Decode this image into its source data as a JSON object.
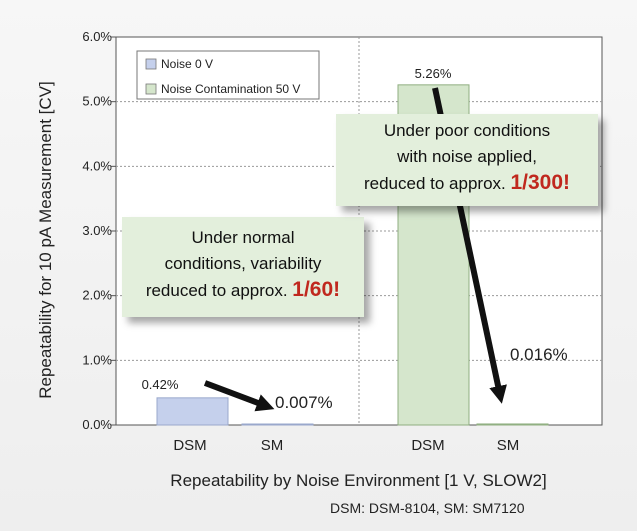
{
  "chart_data": {
    "type": "bar",
    "title": "",
    "ylabel": "Repeatability for 10 pA Measurement [CV]",
    "xlabel": "Repeatability by Noise Environment [1 V, SLOW2]",
    "ylim": [
      0,
      6.0
    ],
    "y_ticks": [
      "0.0%",
      "1.0%",
      "2.0%",
      "3.0%",
      "4.0%",
      "5.0%",
      "6.0%"
    ],
    "y_tick_values": [
      0,
      1,
      2,
      3,
      4,
      5,
      6
    ],
    "grid": true,
    "legend_position": "top-left",
    "groups": [
      {
        "series_name": "Noise 0 V",
        "color": "#c5d0ec",
        "stroke": "#9aa8cc",
        "bars": [
          {
            "category": "DSM",
            "value": 0.42,
            "label": "0.42%"
          },
          {
            "category": "SM",
            "value": 0.007,
            "label": "0.007%"
          }
        ]
      },
      {
        "series_name": "Noise Contamination 50 V",
        "color": "#d5e6cc",
        "stroke": "#8fae80",
        "bars": [
          {
            "category": "DSM",
            "value": 5.26,
            "label": "5.26%"
          },
          {
            "category": "SM",
            "value": 0.016,
            "label": "0.016%"
          }
        ]
      }
    ],
    "legend": [
      {
        "name": "Noise 0 V",
        "color": "#c5d0ec"
      },
      {
        "name": "Noise Contamination 50 V",
        "color": "#d5e6cc"
      }
    ]
  },
  "callouts": {
    "normal": {
      "line1": "Under normal",
      "line2": "conditions, variability",
      "line3_prefix": "reduced to approx. ",
      "highlight": "1/60!"
    },
    "poor": {
      "line1": "Under poor conditions",
      "line2": "with noise applied,",
      "line3_prefix": "reduced to approx. ",
      "highlight": "1/300!"
    }
  },
  "footnote": "DSM: DSM-8104, SM: SM7120"
}
